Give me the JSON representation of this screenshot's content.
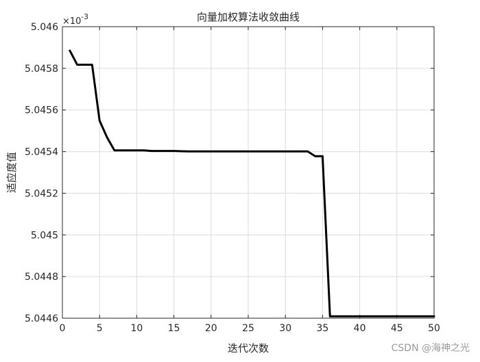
{
  "chart_data": {
    "type": "line",
    "title": "向量加权算法收敛曲线",
    "xlabel": "迭代次数",
    "ylabel": "适应度值",
    "exponent_prefix": "×10",
    "exponent_power": "-3",
    "xlim": [
      0,
      50
    ],
    "ylim": [
      5.0446,
      5.046
    ],
    "grid": true,
    "x_ticks": [
      0,
      5,
      10,
      15,
      20,
      25,
      30,
      35,
      40,
      45,
      50
    ],
    "x_tick_labels": [
      "0",
      "5",
      "10",
      "15",
      "20",
      "25",
      "30",
      "35",
      "40",
      "45",
      "50"
    ],
    "y_ticks": [
      5.0446,
      5.0448,
      5.045,
      5.0452,
      5.0454,
      5.0456,
      5.0458,
      5.046
    ],
    "y_tick_labels": [
      "5.0446",
      "5.0448",
      "5.045",
      "5.0452",
      "5.0454",
      "5.0456",
      "5.0458",
      "5.046"
    ],
    "series": [
      {
        "color": "#000000",
        "x": [
          1,
          2,
          3,
          4,
          5,
          6,
          7,
          8,
          9,
          10,
          11,
          12,
          13,
          14,
          15,
          16,
          17,
          18,
          19,
          20,
          21,
          22,
          23,
          24,
          25,
          26,
          27,
          28,
          29,
          30,
          31,
          32,
          33,
          34,
          35,
          36,
          37,
          38,
          39,
          40,
          41,
          42,
          43,
          44,
          45,
          46,
          47,
          48,
          49,
          50
        ],
        "y": [
          5.045885,
          5.045817,
          5.045817,
          5.045817,
          5.045549,
          5.045469,
          5.045406,
          5.045406,
          5.045406,
          5.045406,
          5.045406,
          5.045403,
          5.045403,
          5.045403,
          5.045403,
          5.045402,
          5.045401,
          5.045401,
          5.045401,
          5.045401,
          5.045401,
          5.045401,
          5.045401,
          5.045401,
          5.045401,
          5.045401,
          5.045401,
          5.045401,
          5.045401,
          5.045401,
          5.045401,
          5.045401,
          5.045401,
          5.045378,
          5.045378,
          5.044609,
          5.044609,
          5.044609,
          5.044609,
          5.044609,
          5.044609,
          5.044609,
          5.044609,
          5.044609,
          5.044609,
          5.044609,
          5.044609,
          5.044609,
          5.044609,
          5.044609
        ]
      }
    ]
  },
  "watermark": "CSDN @海神之光"
}
